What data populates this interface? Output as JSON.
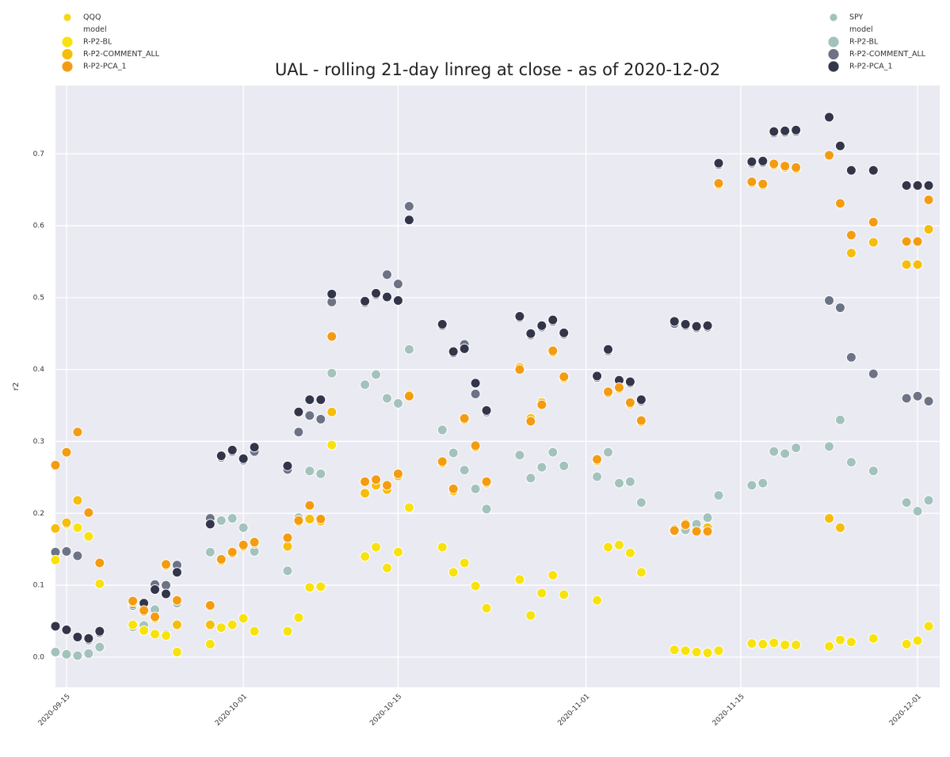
{
  "chart_data": {
    "type": "scatter",
    "title": "UAL - rolling 21-day linreg at close - as of 2020-12-02",
    "y_label": "r2",
    "x": [
      "2020-09-14",
      "2020-09-15",
      "2020-09-16",
      "2020-09-17",
      "2020-09-18",
      "2020-09-21",
      "2020-09-22",
      "2020-09-23",
      "2020-09-24",
      "2020-09-25",
      "2020-09-28",
      "2020-09-29",
      "2020-09-30",
      "2020-10-01",
      "2020-10-02",
      "2020-10-05",
      "2020-10-06",
      "2020-10-07",
      "2020-10-08",
      "2020-10-09",
      "2020-10-12",
      "2020-10-13",
      "2020-10-14",
      "2020-10-15",
      "2020-10-16",
      "2020-10-19",
      "2020-10-20",
      "2020-10-21",
      "2020-10-22",
      "2020-10-23",
      "2020-10-26",
      "2020-10-27",
      "2020-10-28",
      "2020-10-29",
      "2020-10-30",
      "2020-11-02",
      "2020-11-03",
      "2020-11-04",
      "2020-11-05",
      "2020-11-06",
      "2020-11-09",
      "2020-11-10",
      "2020-11-11",
      "2020-11-12",
      "2020-11-13",
      "2020-11-16",
      "2020-11-17",
      "2020-11-18",
      "2020-11-19",
      "2020-11-20",
      "2020-11-23",
      "2020-11-24",
      "2020-11-25",
      "2020-11-27",
      "2020-11-30",
      "2020-12-01",
      "2020-12-02"
    ],
    "xlim": [
      "2020-09-14",
      "2020-12-03"
    ],
    "xticks": [
      "2020-09-15",
      "2020-10-01",
      "2020-10-15",
      "2020-11-01",
      "2020-11-15",
      "2020-12-01"
    ],
    "ylim": [
      -0.042,
      0.795
    ],
    "yticks": [
      {
        "value": 0,
        "label": "0.0"
      },
      0.1,
      0.2,
      0.3,
      0.4,
      0.5,
      0.6,
      0.7
    ],
    "grid": true,
    "legends": [
      {
        "title": "QQQ",
        "subtitle": "model",
        "color": "#f2d81a",
        "corner": "upper left"
      },
      {
        "title": "SPY",
        "subtitle": "model",
        "color": "#a3c2bc",
        "corner": "upper right"
      }
    ],
    "series": [
      {
        "name": "R-P2-BL",
        "legend": 1,
        "color": "#a3c2bc",
        "values": [
          0.007,
          0.004,
          0.002,
          0.005,
          0.014,
          0.042,
          0.044,
          0.066,
          0.032,
          0.075,
          0.146,
          0.19,
          0.193,
          0.18,
          0.147,
          0.12,
          0.194,
          0.259,
          0.255,
          0.395,
          0.379,
          0.393,
          0.36,
          0.353,
          0.428,
          0.316,
          0.284,
          0.26,
          0.234,
          0.206,
          0.281,
          0.249,
          0.264,
          0.285,
          0.266,
          0.251,
          0.285,
          0.242,
          0.244,
          0.215,
          0.175,
          0.177,
          0.185,
          0.194,
          0.225,
          0.239,
          0.242,
          0.286,
          0.283,
          0.291,
          0.293,
          0.33,
          0.271,
          0.259,
          0.215,
          0.203,
          0.218
        ]
      },
      {
        "name": "R-P2-COMMENT_ALL",
        "legend": 1,
        "color": "#6c7386",
        "values": [
          0.146,
          0.147,
          0.141,
          0.024,
          0.034,
          0.072,
          0.073,
          0.101,
          0.1,
          0.128,
          0.193,
          0.278,
          0.286,
          0.274,
          0.286,
          0.261,
          0.313,
          0.336,
          0.331,
          0.494,
          0.493,
          0.504,
          0.532,
          0.519,
          0.627,
          0.461,
          0.423,
          0.435,
          0.366,
          0.341,
          0.472,
          0.448,
          0.459,
          0.467,
          0.449,
          0.389,
          0.426,
          0.383,
          0.381,
          0.356,
          0.464,
          0.461,
          0.458,
          0.459,
          0.685,
          0.687,
          0.688,
          0.729,
          0.73,
          0.731,
          0.496,
          0.486,
          0.417,
          0.394,
          0.36,
          0.363,
          0.356
        ]
      },
      {
        "name": "R-P2-PCA_1",
        "legend": 1,
        "color": "#33354a",
        "values": [
          0.043,
          0.038,
          0.028,
          0.026,
          0.036,
          0.074,
          0.075,
          0.094,
          0.088,
          0.118,
          0.185,
          0.28,
          0.288,
          0.276,
          0.292,
          0.266,
          0.341,
          0.358,
          0.358,
          0.505,
          0.495,
          0.506,
          0.501,
          0.496,
          0.608,
          0.463,
          0.425,
          0.429,
          0.381,
          0.343,
          0.474,
          0.45,
          0.461,
          0.469,
          0.451,
          0.391,
          0.428,
          0.385,
          0.383,
          0.358,
          0.467,
          0.463,
          0.46,
          0.461,
          0.687,
          0.689,
          0.69,
          0.731,
          0.732,
          0.733,
          0.751,
          0.711,
          0.677,
          0.677,
          0.656,
          0.656,
          0.656
        ]
      },
      {
        "name": "R-P2-BL",
        "legend": 0,
        "color": "#f7e20f",
        "values": [
          0.135,
          0.185,
          0.18,
          0.168,
          0.102,
          0.045,
          0.037,
          0.032,
          0.03,
          0.007,
          0.018,
          0.041,
          0.045,
          0.054,
          0.036,
          0.036,
          0.055,
          0.097,
          0.098,
          0.295,
          0.14,
          0.153,
          0.124,
          0.146,
          0.208,
          0.153,
          0.118,
          0.131,
          0.099,
          0.068,
          0.108,
          0.058,
          0.089,
          0.114,
          0.087,
          0.079,
          0.153,
          0.156,
          0.145,
          0.118,
          0.01,
          0.009,
          0.007,
          0.006,
          0.009,
          0.019,
          0.018,
          0.02,
          0.017,
          0.017,
          0.015,
          0.024,
          0.021,
          0.026,
          0.018,
          0.023,
          0.043
        ]
      },
      {
        "name": "R-P2-COMMENT_ALL",
        "legend": 0,
        "color": "#f5bd0c",
        "values": [
          0.179,
          0.187,
          0.218,
          0.201,
          0.131,
          0.076,
          0.063,
          0.054,
          0.127,
          0.045,
          0.045,
          0.134,
          0.144,
          0.154,
          0.158,
          0.154,
          0.188,
          0.192,
          0.189,
          0.341,
          0.228,
          0.239,
          0.233,
          0.252,
          0.365,
          0.27,
          0.231,
          0.33,
          0.292,
          0.242,
          0.403,
          0.332,
          0.354,
          0.424,
          0.388,
          0.273,
          0.367,
          0.373,
          0.352,
          0.327,
          0.178,
          0.186,
          0.175,
          0.18,
          0.657,
          0.659,
          0.656,
          0.684,
          0.681,
          0.679,
          0.193,
          0.18,
          0.562,
          0.577,
          0.546,
          0.546,
          0.595
        ]
      },
      {
        "name": "R-P2-PCA_1",
        "legend": 0,
        "color": "#f39c12",
        "values": [
          0.267,
          0.285,
          0.313,
          0.201,
          0.131,
          0.078,
          0.065,
          0.056,
          0.129,
          0.079,
          0.072,
          0.136,
          0.146,
          0.156,
          0.16,
          0.166,
          0.19,
          0.211,
          0.192,
          0.446,
          0.244,
          0.247,
          0.239,
          0.255,
          0.363,
          0.272,
          0.234,
          0.332,
          0.294,
          0.244,
          0.4,
          0.328,
          0.351,
          0.426,
          0.39,
          0.275,
          0.369,
          0.375,
          0.354,
          0.329,
          0.176,
          0.184,
          0.175,
          0.175,
          0.659,
          0.661,
          0.658,
          0.686,
          0.683,
          0.681,
          0.698,
          0.631,
          0.587,
          0.605,
          0.578,
          0.578,
          0.636
        ]
      }
    ]
  }
}
